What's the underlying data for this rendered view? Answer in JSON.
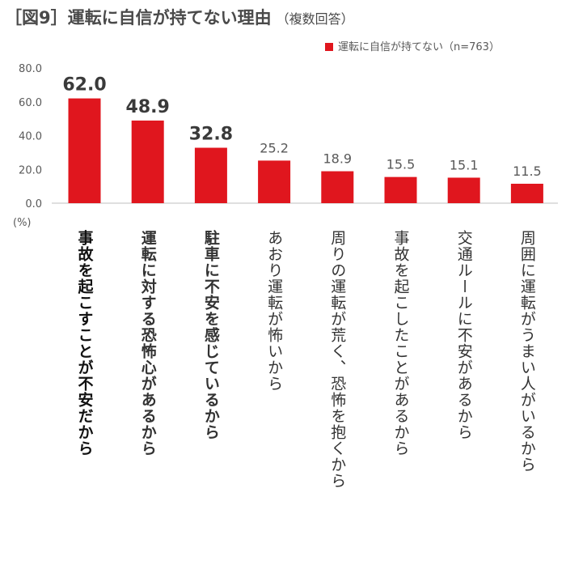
{
  "title": "［図9］運転に自信が持てない理由",
  "subtitle": "（複数回答）",
  "unit_label": "(%)",
  "colors": {
    "bar": "#e0161e",
    "axis": "#bfbfbf",
    "label": "#595959"
  },
  "chart_data": {
    "type": "bar",
    "title": "［図9］運転に自信が持てない理由",
    "subtitle": "（複数回答）",
    "ylabel": "(%)",
    "ylim": [
      0,
      80
    ],
    "yticks": [
      "0.0",
      "20.0",
      "40.0",
      "60.0",
      "80.0"
    ],
    "legend": {
      "position": "top-right",
      "label": "運転に自信が持てない（n=763）"
    },
    "series": [
      {
        "name": "運転に自信が持てない（n=763）",
        "values": [
          62.0,
          48.9,
          32.8,
          25.2,
          18.9,
          15.5,
          15.1,
          11.5
        ]
      }
    ],
    "value_labels": [
      "62.0",
      "48.9",
      "32.8",
      "25.2",
      "18.9",
      "15.5",
      "15.1",
      "11.5"
    ],
    "categories": [
      "事故を起こすことが不安だから",
      "運転に対する恐怖心があるから",
      "駐車に不安を感じているから",
      "あおり運転が怖いから",
      "周りの運転が荒く、恐怖を抱くから",
      "事故を起こしたことがあるから",
      "交通ルールに不安があるから",
      "周囲に運転がうまい人がいるから"
    ]
  }
}
